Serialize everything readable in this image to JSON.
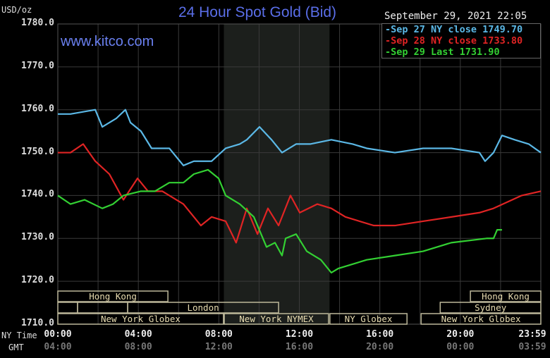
{
  "chart_data": {
    "type": "line",
    "title": "24 Hour Spot Gold (Bid)",
    "watermark": "www.kitco.com",
    "ylabel": "USD/oz",
    "date_label": "September 29, 2021 22:05",
    "ylim": [
      1710,
      1780
    ],
    "yticks": [
      "1780.0",
      "1770.0",
      "1760.0",
      "1750.0",
      "1740.0",
      "1730.0",
      "1720.0",
      "1710.0"
    ],
    "xlim_hours": [
      0,
      24
    ],
    "x_row_labels": {
      "ny": "NY Time",
      "gmt": "GMT"
    },
    "xticks_ny": [
      "00:00",
      "04:00",
      "08:00",
      "12:00",
      "16:00",
      "20:00",
      "23:59"
    ],
    "xticks_gmt": [
      "04:00",
      "08:00",
      "12:00",
      "16:00",
      "20:00",
      "00:00",
      "03:59"
    ],
    "shaded_region_hours": [
      8.25,
      13.5
    ],
    "grid": true,
    "legend_position": "top-right",
    "series": [
      {
        "name": "Sep 27 NY close 1749.70",
        "color": "#5bb8e6",
        "x": [
          0,
          0.63,
          1.86,
          2.21,
          2.91,
          3.36,
          3.61,
          4.13,
          4.66,
          5.54,
          6.24,
          6.76,
          7.64,
          8.34,
          9.04,
          9.39,
          10.02,
          10.62,
          11.14,
          11.84,
          12.54,
          13.59,
          14.65,
          15.35,
          16.75,
          18.15,
          19.55,
          20.95,
          21.23,
          21.65,
          22.07,
          22.7,
          23.4,
          24
        ],
        "y": [
          1759,
          1759,
          1760,
          1756,
          1758,
          1760,
          1757,
          1755,
          1751,
          1751,
          1747,
          1748,
          1748,
          1751,
          1752,
          1753,
          1756,
          1753,
          1750,
          1752,
          1752,
          1753,
          1752,
          1751,
          1750,
          1751,
          1751,
          1750,
          1748,
          1750,
          1754,
          1753,
          1752,
          1750
        ]
      },
      {
        "name": "Sep 28 NY close 1733.80",
        "color": "#e02424",
        "x": [
          0,
          0.63,
          1.26,
          1.86,
          2.56,
          3.26,
          3.96,
          4.48,
          5.19,
          6.24,
          7.11,
          7.64,
          8.34,
          8.86,
          9.39,
          9.92,
          10.44,
          10.97,
          11.56,
          12.02,
          12.89,
          13.59,
          14.29,
          15.7,
          16.75,
          18.15,
          19.55,
          20.95,
          21.65,
          23.05,
          24
        ],
        "y": [
          1750,
          1750,
          1752,
          1748,
          1745,
          1739,
          1744,
          1741,
          1741,
          1738,
          1733,
          1735,
          1734,
          1729,
          1737,
          1731,
          1737,
          1733,
          1740,
          1736,
          1738,
          1737,
          1735,
          1733,
          1733,
          1734,
          1735,
          1736,
          1737,
          1740,
          1741
        ]
      },
      {
        "name": "Sep 29 Last 1731.90",
        "color": "#33d033",
        "x": [
          0,
          0.63,
          1.33,
          2.21,
          2.74,
          3.26,
          4.13,
          4.83,
          5.54,
          6.24,
          6.76,
          7.46,
          7.99,
          8.34,
          9.04,
          9.74,
          10.37,
          10.79,
          11.14,
          11.32,
          11.84,
          12.37,
          13.07,
          13.59,
          13.94,
          14.65,
          15.35,
          16.75,
          18.15,
          19.55,
          21.3,
          21.65,
          21.83,
          22.07
        ],
        "y": [
          1740,
          1738,
          1739,
          1737,
          1738,
          1740,
          1741,
          1741,
          1743,
          1743,
          1745,
          1746,
          1744,
          1740,
          1738,
          1735,
          1728,
          1729,
          1726,
          1730,
          1731,
          1727,
          1725,
          1722,
          1723,
          1724,
          1725,
          1726,
          1727,
          1729,
          1730,
          1730,
          1732,
          1732
        ]
      }
    ],
    "sessions": [
      {
        "label": "Hong Kong",
        "row": 0,
        "start": 0,
        "end": 5.47
      },
      {
        "label": "Hong Kong",
        "row": 0,
        "start": 20.5,
        "end": 24
      },
      {
        "label": "",
        "row": 1,
        "start": 0,
        "end": 0.98
      },
      {
        "label": "",
        "row": 1,
        "start": 0.98,
        "end": 3.47
      },
      {
        "label": "London",
        "row": 1,
        "start": 3.47,
        "end": 10.97
      },
      {
        "label": "Sydney",
        "row": 1,
        "start": 19.0,
        "end": 24
      },
      {
        "label": "New York Globex",
        "row": 2,
        "start": 0,
        "end": 8.23
      },
      {
        "label": "New York NYMEX",
        "row": 2,
        "start": 8.27,
        "end": 13.45
      },
      {
        "label": "NY Globex",
        "row": 2,
        "start": 13.52,
        "end": 17.35
      },
      {
        "label": "New York Globex",
        "row": 2,
        "start": 18.05,
        "end": 24
      }
    ]
  }
}
